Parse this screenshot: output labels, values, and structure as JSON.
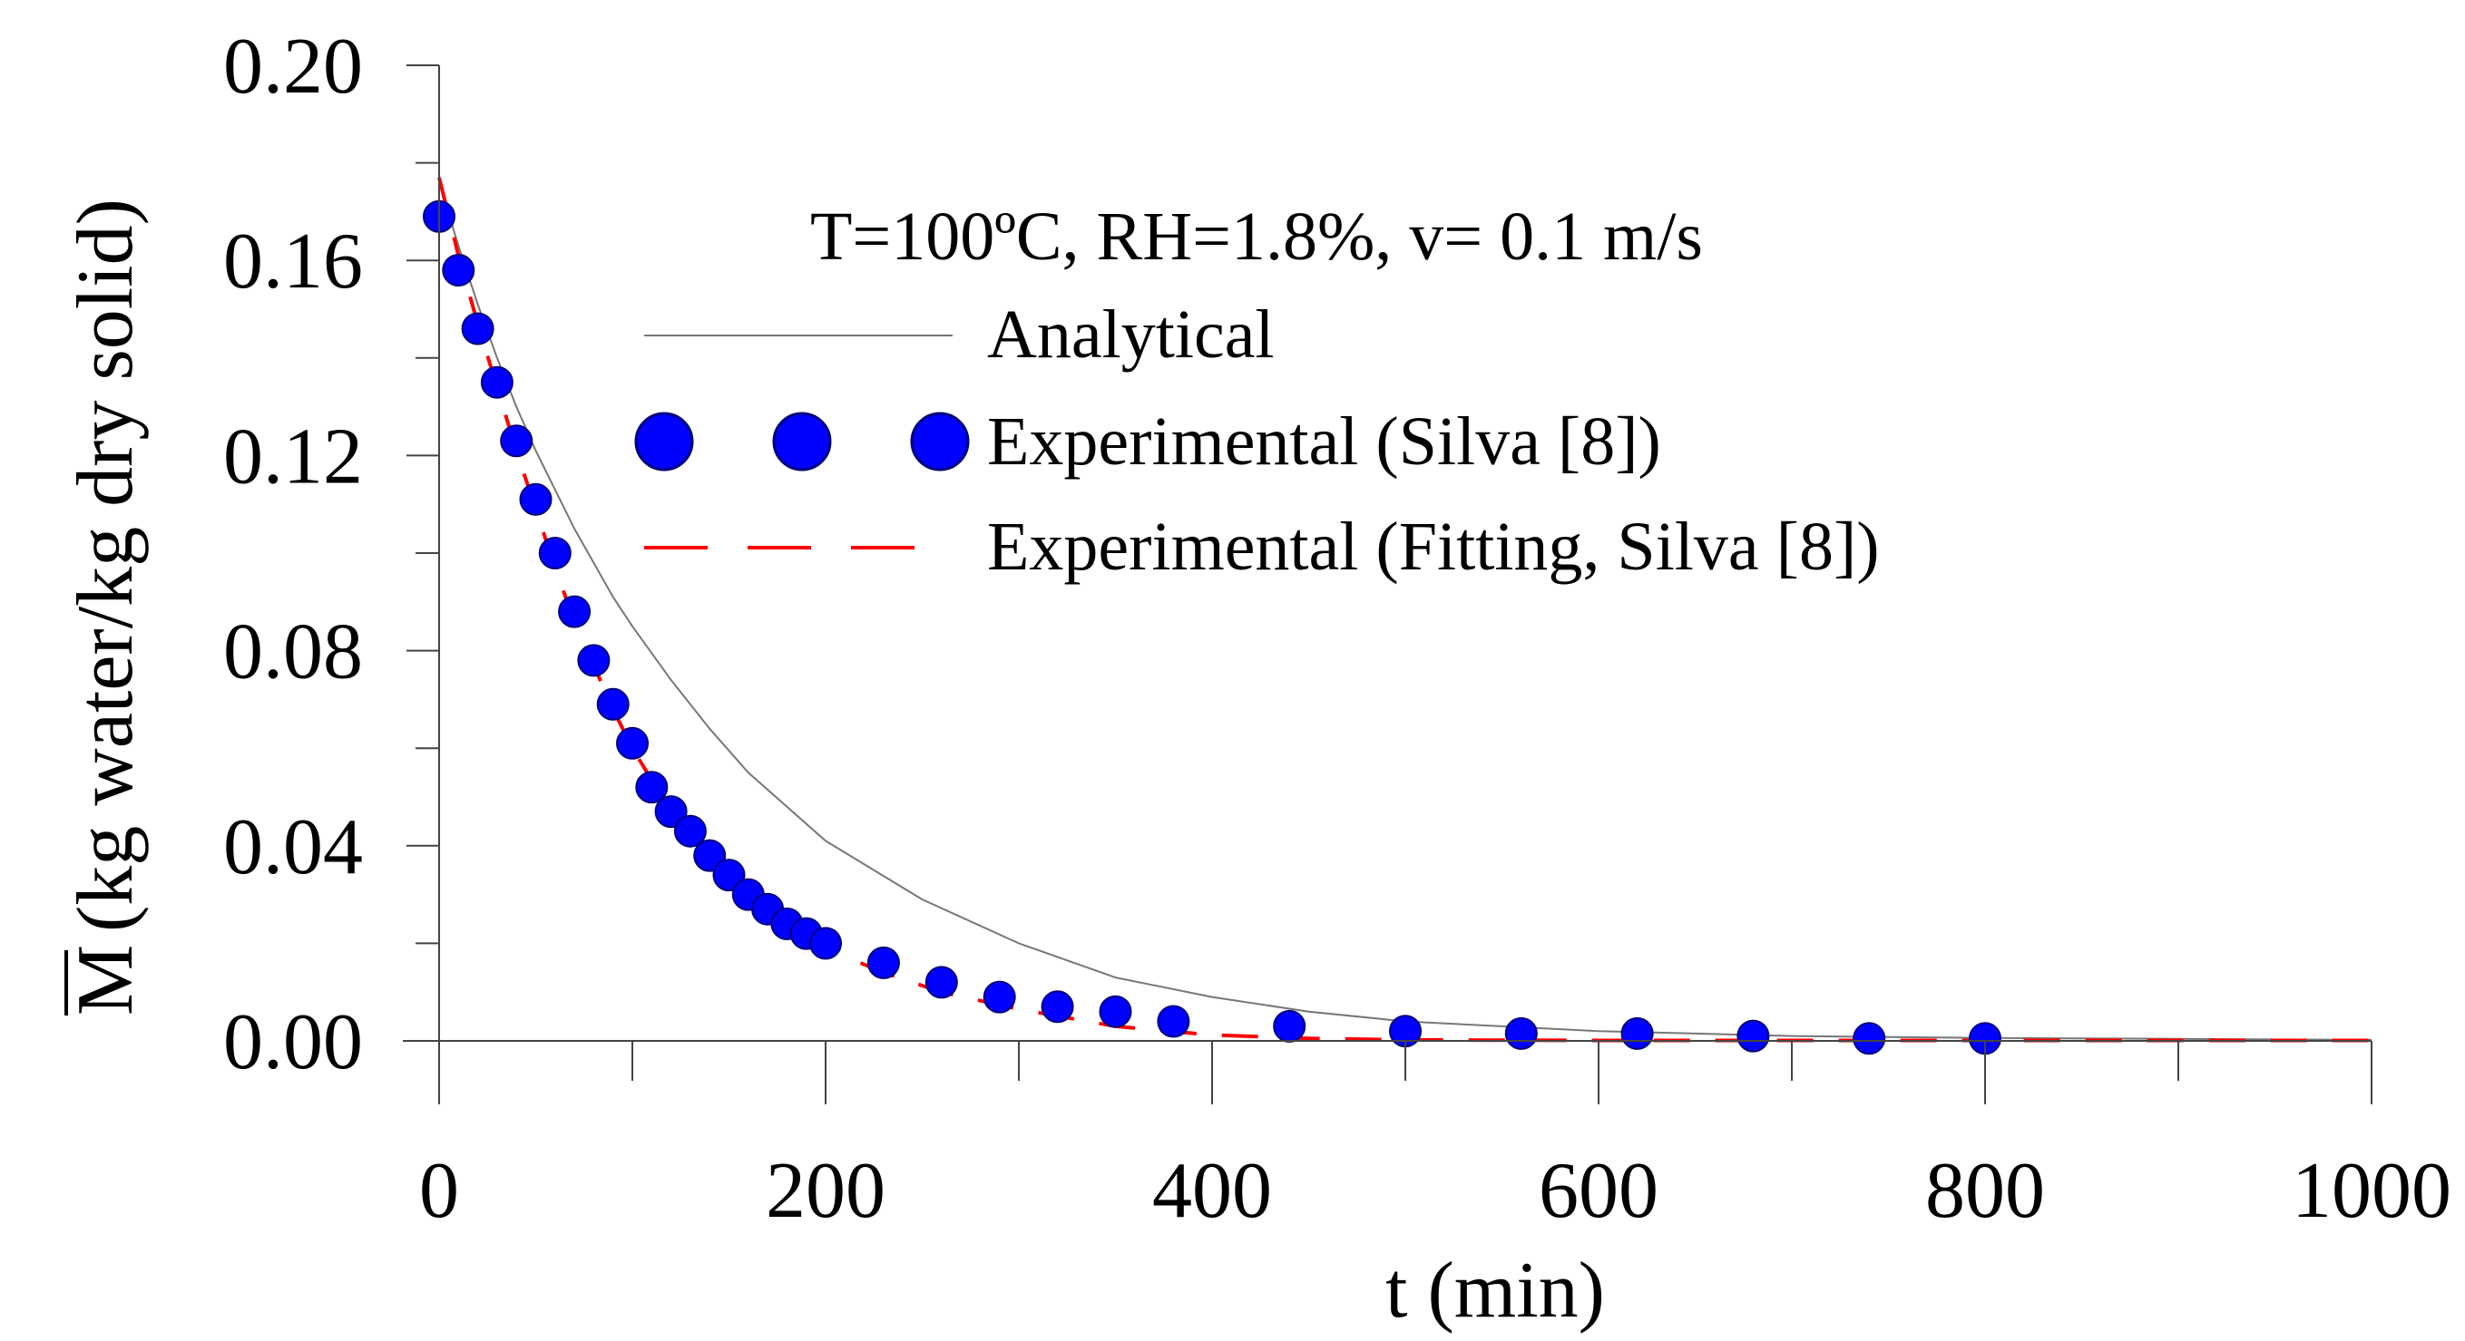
{
  "chart_data": {
    "type": "line",
    "title": "",
    "annotation": "T=100ºC, RH=1.8%, v= 0.1 m/s",
    "xlabel": "t (min)",
    "ylabel_symbol": "M",
    "ylabel": "(kg water/kg dry solid)",
    "xlim": [
      0,
      1000
    ],
    "ylim": [
      0,
      0.2
    ],
    "xticks": [
      0,
      200,
      400,
      600,
      800,
      1000
    ],
    "yticks": [
      0.0,
      0.04,
      0.08,
      0.12,
      0.16,
      0.2
    ],
    "xtick_labels": [
      "0",
      "200",
      "400",
      "600",
      "800",
      "1000"
    ],
    "ytick_labels": [
      "0.00",
      "0.04",
      "0.08",
      "0.12",
      "0.16",
      "0.20"
    ],
    "grid": false,
    "legend_position": "top-right",
    "series": [
      {
        "name": "Analytical",
        "kind": "line",
        "style": "solid",
        "color": "#777777",
        "x": [
          0,
          10,
          20,
          30,
          40,
          50,
          60,
          70,
          80,
          90,
          100,
          120,
          140,
          160,
          180,
          200,
          250,
          300,
          350,
          400,
          450,
          500,
          550,
          600,
          650,
          700,
          750,
          800,
          850,
          900,
          950,
          1000
        ],
        "y": [
          0.176,
          0.163,
          0.151,
          0.14,
          0.13,
          0.121,
          0.113,
          0.105,
          0.098,
          0.091,
          0.085,
          0.074,
          0.064,
          0.055,
          0.048,
          0.041,
          0.029,
          0.02,
          0.013,
          0.009,
          0.006,
          0.004,
          0.003,
          0.002,
          0.0015,
          0.001,
          0.0008,
          0.0006,
          0.0005,
          0.0004,
          0.0003,
          0.0002
        ]
      },
      {
        "name": "Experimental (Silva [8])",
        "kind": "scatter",
        "color": "#0000ff",
        "x": [
          0,
          10,
          20,
          30,
          40,
          50,
          60,
          70,
          80,
          90,
          100,
          110,
          120,
          130,
          140,
          150,
          160,
          170,
          180,
          190,
          200,
          230,
          260,
          290,
          320,
          350,
          380,
          440,
          500,
          560,
          620,
          680,
          740,
          800
        ],
        "y": [
          0.169,
          0.158,
          0.146,
          0.135,
          0.123,
          0.111,
          0.1,
          0.088,
          0.078,
          0.069,
          0.061,
          0.052,
          0.047,
          0.043,
          0.038,
          0.034,
          0.03,
          0.027,
          0.024,
          0.022,
          0.02,
          0.016,
          0.012,
          0.009,
          0.007,
          0.006,
          0.004,
          0.003,
          0.002,
          0.0015,
          0.0015,
          0.001,
          0.0005,
          0.0005
        ]
      },
      {
        "name": "Experimental (Fitting, Silva [8])",
        "kind": "line",
        "style": "dashed",
        "color": "#ff0000",
        "x": [
          0,
          10,
          20,
          30,
          40,
          50,
          60,
          70,
          80,
          90,
          100,
          120,
          140,
          160,
          180,
          200,
          230,
          260,
          300,
          350,
          400,
          450,
          500,
          600,
          700,
          800,
          900,
          1000
        ],
        "y": [
          0.177,
          0.161,
          0.147,
          0.134,
          0.121,
          0.109,
          0.097,
          0.086,
          0.077,
          0.068,
          0.06,
          0.047,
          0.037,
          0.029,
          0.023,
          0.019,
          0.014,
          0.01,
          0.0065,
          0.003,
          0.0012,
          0.0005,
          0.0002,
          0.0001,
          0.0001,
          0.0001,
          0.0001,
          0.0001
        ]
      }
    ]
  }
}
